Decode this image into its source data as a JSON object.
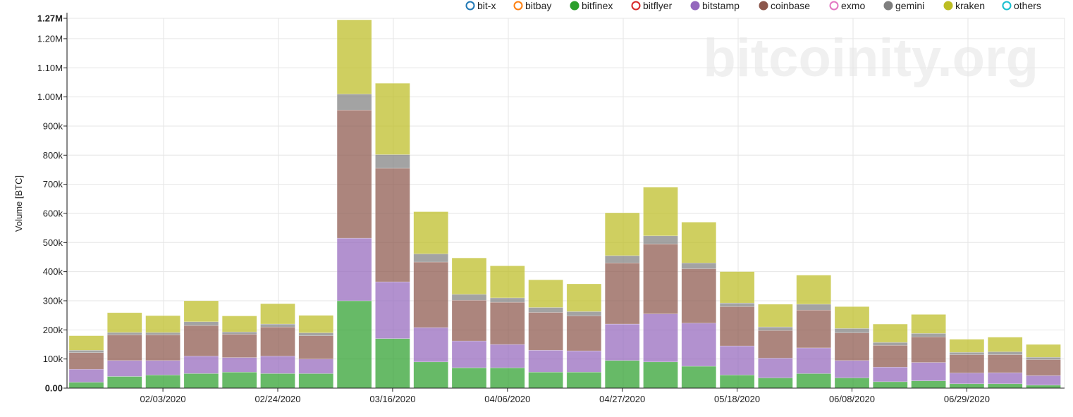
{
  "watermark": "bitcoinity.org",
  "chart_data": {
    "type": "bar",
    "stacked": true,
    "ylabel": "Volume [BTC]",
    "ylim": [
      0,
      1270000
    ],
    "y_ticks": [
      {
        "value": 0,
        "label": "0.00",
        "bold": true
      },
      {
        "value": 100000,
        "label": "100k"
      },
      {
        "value": 200000,
        "label": "200k"
      },
      {
        "value": 300000,
        "label": "300k"
      },
      {
        "value": 400000,
        "label": "400k"
      },
      {
        "value": 500000,
        "label": "500k"
      },
      {
        "value": 600000,
        "label": "600k"
      },
      {
        "value": 700000,
        "label": "700k"
      },
      {
        "value": 800000,
        "label": "800k"
      },
      {
        "value": 900000,
        "label": "900k"
      },
      {
        "value": 1000000,
        "label": "1.00M"
      },
      {
        "value": 1100000,
        "label": "1.10M"
      },
      {
        "value": 1200000,
        "label": "1.20M"
      },
      {
        "value": 1270000,
        "label": "1.27M",
        "bold": true
      }
    ],
    "x_tick_labels": [
      {
        "label": "02/03/2020",
        "index": 2
      },
      {
        "label": "02/24/2020",
        "index": 5
      },
      {
        "label": "03/16/2020",
        "index": 8
      },
      {
        "label": "04/06/2020",
        "index": 11
      },
      {
        "label": "04/27/2020",
        "index": 14
      },
      {
        "label": "05/18/2020",
        "index": 17
      },
      {
        "label": "06/08/2020",
        "index": 20
      },
      {
        "label": "06/29/2020",
        "index": 23
      }
    ],
    "grid": true,
    "legend_position": "top-right",
    "legend": [
      {
        "name": "bit-x",
        "color": "#1f77b4",
        "filled": false
      },
      {
        "name": "bitbay",
        "color": "#ff7f0e",
        "filled": false
      },
      {
        "name": "bitfinex",
        "color": "#2ca02c",
        "filled": true
      },
      {
        "name": "bitflyer",
        "color": "#d62728",
        "filled": false
      },
      {
        "name": "bitstamp",
        "color": "#9467bd",
        "filled": true
      },
      {
        "name": "coinbase",
        "color": "#8c564b",
        "filled": true
      },
      {
        "name": "exmo",
        "color": "#e377c2",
        "filled": false
      },
      {
        "name": "gemini",
        "color": "#7f7f7f",
        "filled": true
      },
      {
        "name": "kraken",
        "color": "#bcbd22",
        "filled": true
      },
      {
        "name": "others",
        "color": "#17becf",
        "filled": false
      }
    ],
    "series": [
      {
        "name": "bitfinex",
        "color": "#2ca02c",
        "values": [
          20000,
          40000,
          45000,
          50000,
          55000,
          50000,
          50000,
          300000,
          170000,
          90000,
          70000,
          70000,
          55000,
          55000,
          95000,
          90000,
          75000,
          45000,
          35000,
          50000,
          35000,
          22000,
          25000,
          15000,
          15000,
          10000
        ]
      },
      {
        "name": "bitstamp",
        "color": "#9467bd",
        "values": [
          45000,
          55000,
          50000,
          60000,
          50000,
          60000,
          50000,
          215000,
          195000,
          118000,
          92000,
          80000,
          75000,
          73000,
          125000,
          165000,
          148000,
          100000,
          68000,
          88000,
          60000,
          50000,
          63000,
          37000,
          38000,
          33000
        ]
      },
      {
        "name": "coinbase",
        "color": "#8c564b",
        "values": [
          57000,
          88000,
          88000,
          105000,
          80000,
          100000,
          80000,
          440000,
          390000,
          225000,
          140000,
          145000,
          130000,
          120000,
          210000,
          240000,
          187000,
          135000,
          95000,
          130000,
          95000,
          75000,
          88000,
          63000,
          62000,
          55000
        ]
      },
      {
        "name": "gemini",
        "color": "#7f7f7f",
        "values": [
          8000,
          8000,
          8000,
          13000,
          8000,
          10000,
          10000,
          55000,
          47000,
          28000,
          20000,
          15000,
          17000,
          15000,
          25000,
          28000,
          20000,
          12000,
          12000,
          20000,
          15000,
          10000,
          12000,
          8000,
          10000,
          8000
        ]
      },
      {
        "name": "kraken",
        "color": "#bcbd22",
        "values": [
          50000,
          68000,
          58000,
          72000,
          55000,
          70000,
          60000,
          255000,
          245000,
          145000,
          125000,
          110000,
          95000,
          95000,
          147000,
          167000,
          140000,
          108000,
          78000,
          100000,
          75000,
          63000,
          65000,
          45000,
          50000,
          44000
        ]
      }
    ]
  }
}
